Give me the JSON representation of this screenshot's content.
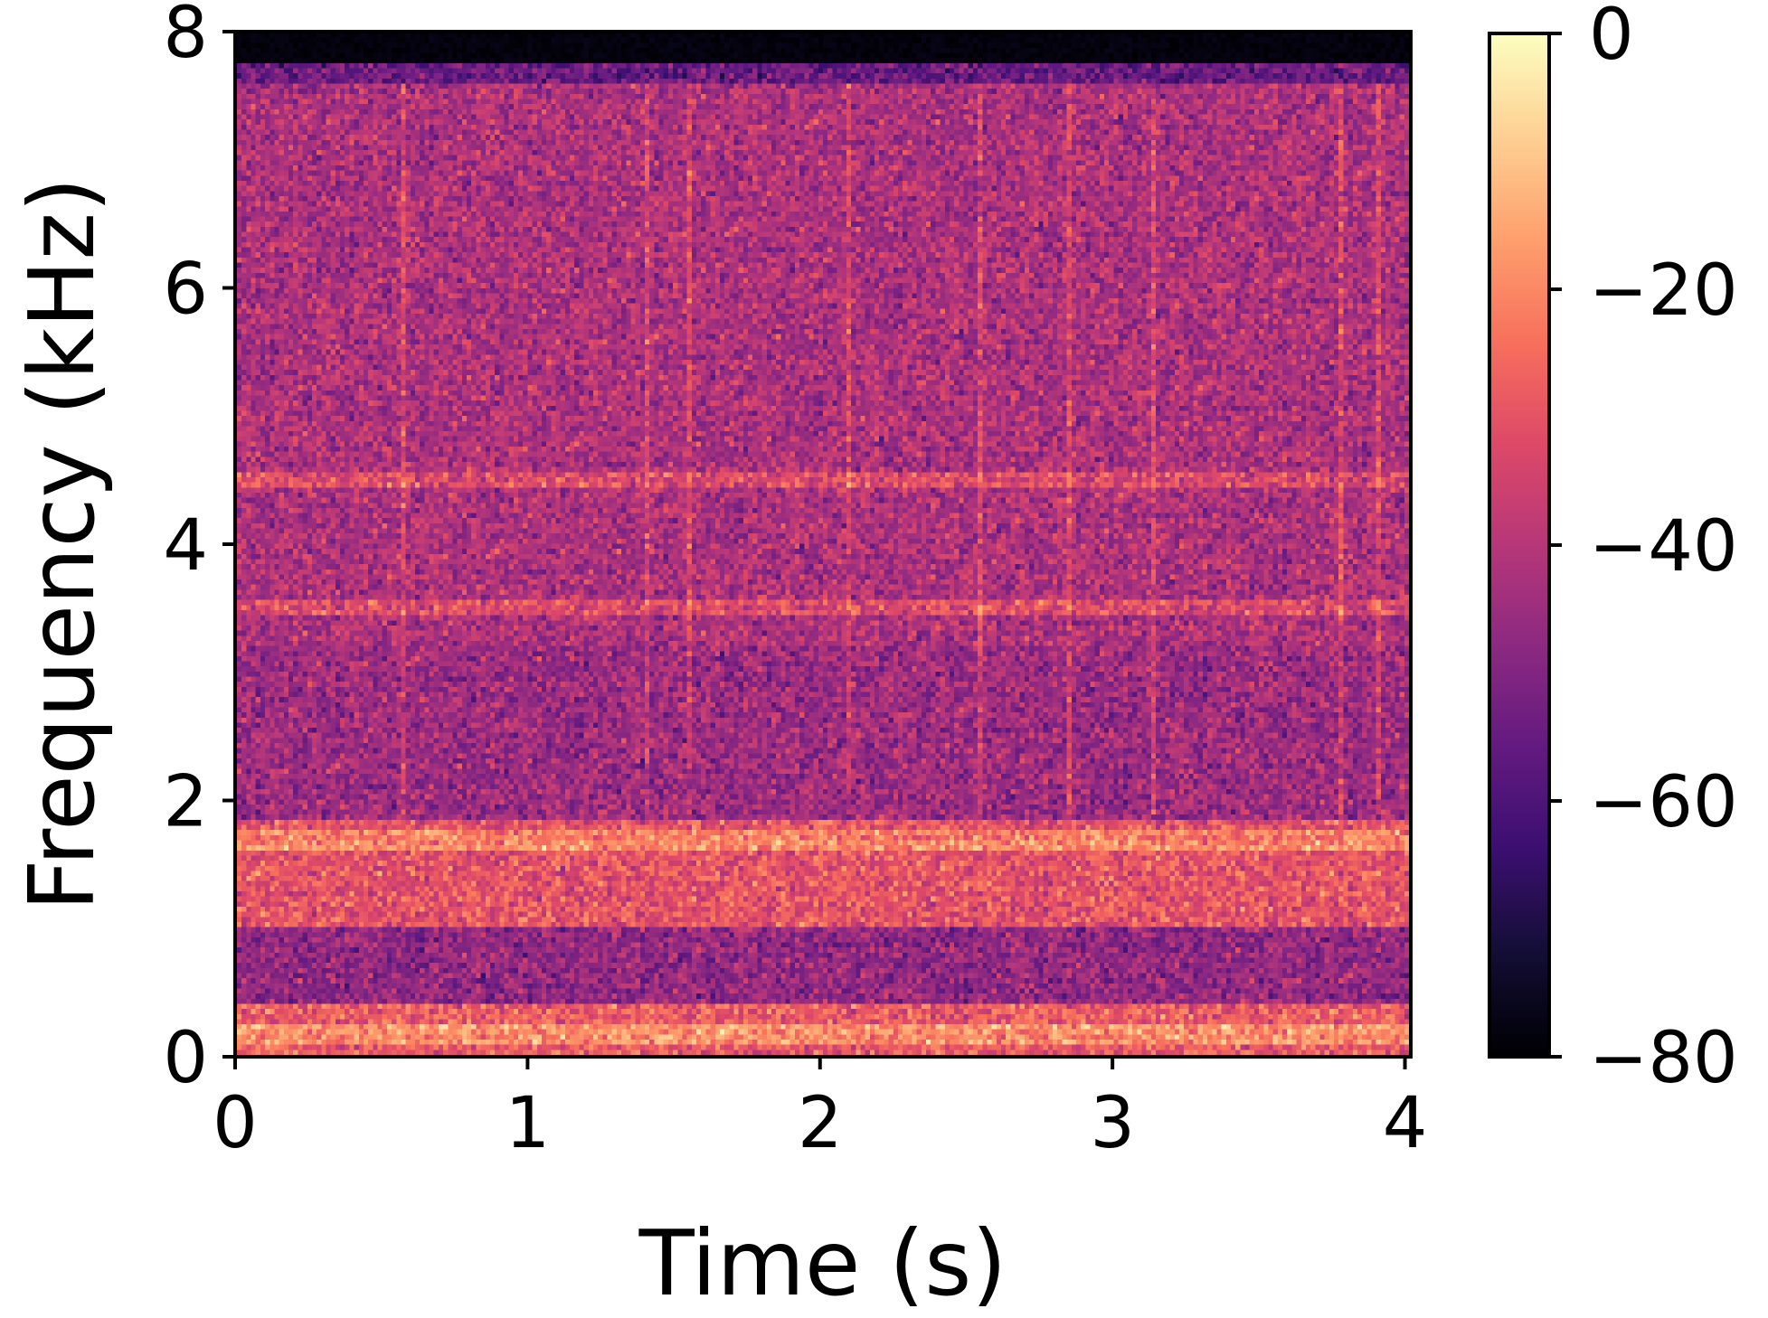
{
  "chart_data": {
    "type": "heatmap",
    "title": "",
    "xlabel": "Time (s)",
    "ylabel": "Frequency (kHz)",
    "xlim": [
      0,
      4.02
    ],
    "ylim": [
      0,
      8
    ],
    "x_ticks": [
      "0",
      "1",
      "2",
      "3",
      "4"
    ],
    "y_ticks": [
      "0",
      "2",
      "4",
      "6",
      "8"
    ],
    "colormap": "magma",
    "colorbar": {
      "range": [
        -80,
        0
      ],
      "ticks": [
        "0",
        "−20",
        "−40",
        "−60",
        "−80"
      ],
      "tick_values": [
        0,
        -20,
        -40,
        -60,
        -80
      ]
    },
    "time_bins": 250,
    "frequency_bins": 200,
    "bands": [
      {
        "freq_khz_from": 7.75,
        "freq_khz_to": 8.0,
        "level_db": -80
      },
      {
        "freq_khz_from": 7.6,
        "freq_khz_to": 7.75,
        "level_db": -55
      },
      {
        "freq_khz_from": 3.2,
        "freq_khz_to": 7.6,
        "level_db": -42
      },
      {
        "freq_khz_from": 1.85,
        "freq_khz_to": 3.2,
        "level_db": -45
      },
      {
        "freq_khz_from": 1.0,
        "freq_khz_to": 1.85,
        "level_db": -30
      },
      {
        "freq_khz_from": 0.4,
        "freq_khz_to": 1.0,
        "level_db": -47
      },
      {
        "freq_khz_from": 0.0,
        "freq_khz_to": 0.4,
        "level_db": -28
      }
    ],
    "bright_lines": [
      {
        "freq_khz": 1.7,
        "level_db": -22
      },
      {
        "freq_khz": 0.15,
        "level_db": -20
      },
      {
        "freq_khz": 4.5,
        "level_db": -33
      },
      {
        "freq_khz": 3.5,
        "level_db": -33
      }
    ],
    "vertical_streaks_time_s": [
      0.57,
      1.4,
      1.55,
      2.1,
      2.55,
      2.85,
      3.15,
      3.8,
      3.93
    ]
  }
}
